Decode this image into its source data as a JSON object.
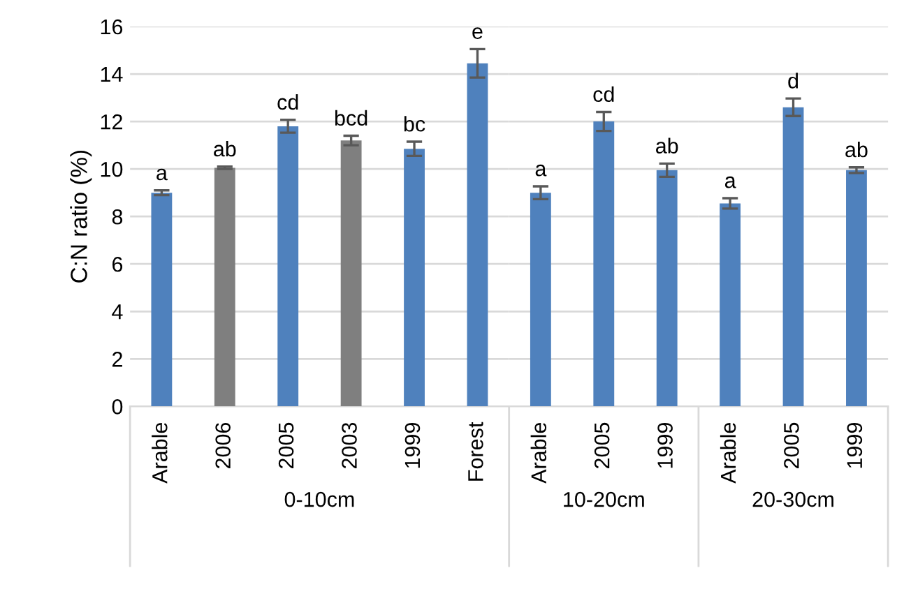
{
  "chart_data": [
    {
      "type": "bar",
      "ylabel": "C:N ratio (%)",
      "xlabel": "0-10cm",
      "categories": [
        "Arable",
        "2006",
        "2005",
        "2003",
        "1999",
        "Forest"
      ],
      "values": [
        9.0,
        10.05,
        11.8,
        11.2,
        10.85,
        14.45
      ],
      "colors": [
        "#4f81bd",
        "#7f7f7f",
        "#4f81bd",
        "#7f7f7f",
        "#4f81bd",
        "#4f81bd"
      ],
      "errors": [
        0.1,
        0.05,
        0.27,
        0.2,
        0.3,
        0.6
      ],
      "value_labels": [
        "a",
        "ab",
        "cd",
        "bcd",
        "bc",
        "e"
      ],
      "ylim": [
        0,
        16
      ],
      "yticks": [
        0,
        2,
        4,
        6,
        8,
        10,
        12,
        14,
        16
      ],
      "grid": "y"
    },
    {
      "type": "bar",
      "xlabel": "10-20cm",
      "categories": [
        "Arable",
        "2005",
        "1999"
      ],
      "values": [
        9.0,
        12.0,
        9.95
      ],
      "colors": [
        "#4f81bd",
        "#4f81bd",
        "#4f81bd"
      ],
      "errors": [
        0.27,
        0.4,
        0.28
      ],
      "value_labels": [
        "a",
        "cd",
        "ab"
      ],
      "ylim": [
        0,
        16
      ],
      "yticks": [
        0,
        2,
        4,
        6,
        8,
        10,
        12,
        14,
        16
      ],
      "grid": "y",
      "tick_labels": "x"
    },
    {
      "type": "bar",
      "xlabel": "20-30cm",
      "categories": [
        "Arable",
        "2005",
        "1999"
      ],
      "values": [
        8.55,
        12.6,
        9.95
      ],
      "colors": [
        "#4f81bd",
        "#4f81bd",
        "#4f81bd"
      ],
      "errors": [
        0.22,
        0.37,
        0.12
      ],
      "value_labels": [
        "a",
        "d",
        "ab"
      ],
      "ylim": [
        0,
        16
      ],
      "yticks": [
        0,
        2,
        4,
        6,
        8,
        10,
        12,
        14,
        16
      ],
      "grid": "y",
      "tick_labels": "x"
    }
  ]
}
